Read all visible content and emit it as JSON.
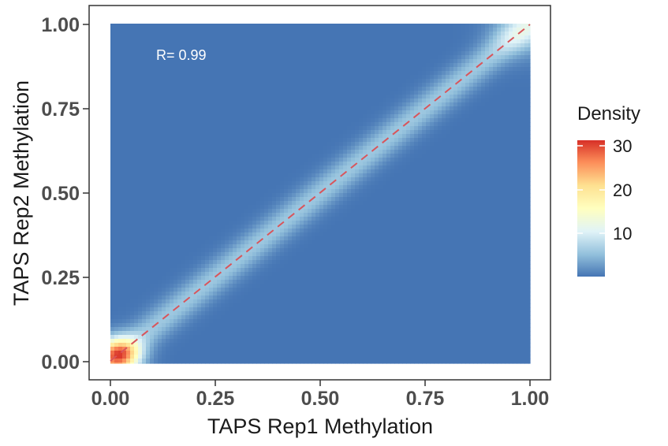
{
  "chart_data": {
    "type": "heatmap",
    "subtype": "2d-density",
    "xlabel": "TAPS Rep1 Methylation",
    "ylabel": "TAPS Rep2 Methylation",
    "xlim": [
      0,
      1
    ],
    "ylim": [
      0,
      1
    ],
    "x_ticks": [
      "0.00",
      "0.25",
      "0.50",
      "0.75",
      "1.00"
    ],
    "y_ticks": [
      "0.00",
      "0.25",
      "0.50",
      "0.75",
      "1.00"
    ],
    "grid": false,
    "annotation": "R= 0.99",
    "reference_line": {
      "type": "identity",
      "style": "dashed",
      "color": "#d9555b",
      "from": [
        0,
        0
      ],
      "to": [
        1,
        1
      ]
    },
    "density_peaks": [
      {
        "x": 0.02,
        "y": 0.02,
        "density": 31
      },
      {
        "x": 0.98,
        "y": 0.98,
        "density": 10
      }
    ],
    "ridge": {
      "along": "y = x",
      "density": 6
    },
    "background_density": 0,
    "legend": {
      "title": "Density",
      "ticks": [
        "10",
        "20",
        "30"
      ],
      "range": [
        0,
        31
      ],
      "placement": "right"
    },
    "colorscale": [
      "#4575b4",
      "#91bfdb",
      "#e0f3f8",
      "#ffffbf",
      "#fee090",
      "#fc8d59",
      "#d73027"
    ]
  }
}
